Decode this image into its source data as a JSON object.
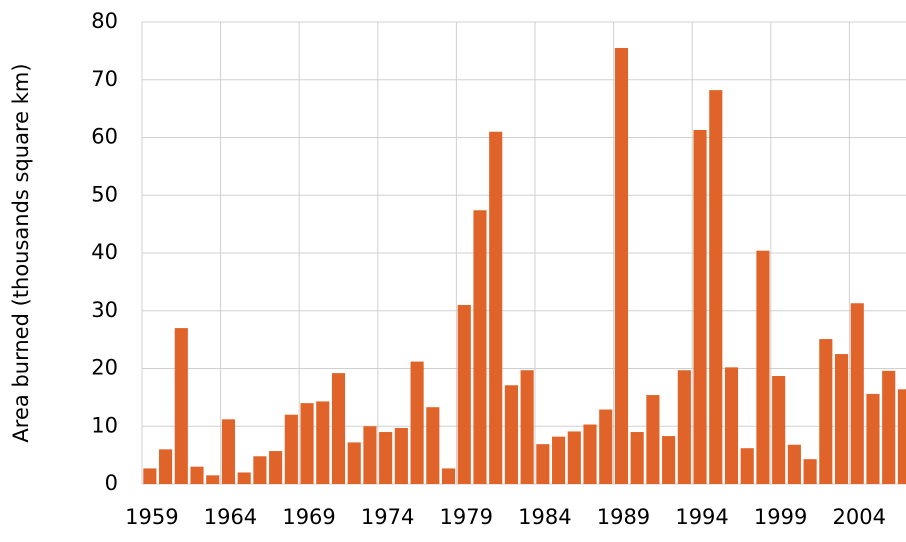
{
  "chart_data": {
    "type": "bar",
    "y_label": "Area burned (thousands square km)",
    "categories": [
      "1959",
      null,
      null,
      null,
      null,
      "1964",
      null,
      null,
      null,
      null,
      "1969",
      null,
      null,
      null,
      null,
      "1974",
      null,
      null,
      null,
      null,
      "1979",
      null,
      null,
      null,
      null,
      "1984",
      null,
      null,
      null,
      null,
      "1989",
      null,
      null,
      null,
      null,
      "1994",
      null,
      null,
      null,
      null,
      "1999",
      null,
      null,
      null,
      null,
      "2004",
      null,
      null,
      null
    ],
    "values": [
      2.7,
      6,
      27,
      3,
      1.5,
      11.2,
      2,
      4.8,
      5.7,
      12,
      14,
      14.3,
      19.2,
      7.2,
      10,
      9,
      9.7,
      21.2,
      13.3,
      2.7,
      31,
      47.4,
      61,
      17.1,
      19.7,
      6.9,
      8.2,
      9.1,
      10.3,
      12.9,
      75.5,
      9,
      15.4,
      8.3,
      19.7,
      61.3,
      68.2,
      20.2,
      6.2,
      40.4,
      18.7,
      6.8,
      4.3,
      25.1,
      22.5,
      31.3,
      15.6,
      19.6,
      16.4
    ],
    "color": "#e0642a",
    "ylim": [
      0,
      80
    ],
    "yticks": [
      0,
      10,
      20,
      30,
      40,
      50,
      60,
      70,
      80
    ],
    "grid": true
  }
}
